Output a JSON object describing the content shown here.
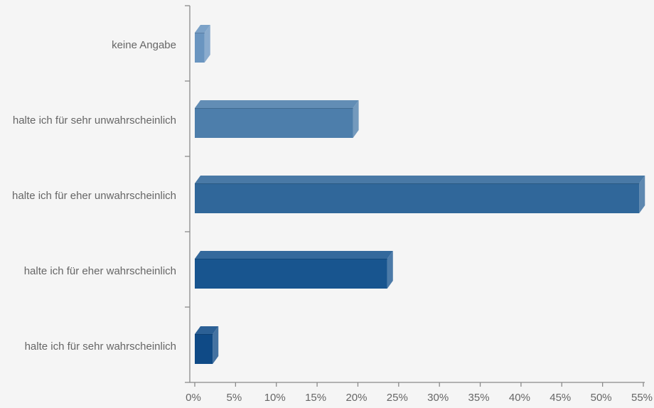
{
  "chart_data": {
    "type": "bar",
    "orientation": "horizontal",
    "style": "3d",
    "categories": [
      "keine Angabe",
      "halte ich für sehr unwahrscheinlich",
      "halte ich für eher unwahrscheinlich",
      "halte ich für eher wahrscheinlich",
      "halte ich für sehr wahrscheinlich"
    ],
    "values": [
      1.2,
      19.4,
      54.5,
      23.6,
      2.2
    ],
    "colors": [
      "#6a95c0",
      "#4d7eab",
      "#30679a",
      "#18558f",
      "#0f4a86"
    ],
    "xlim": [
      0,
      55
    ],
    "xticks": [
      0,
      5,
      10,
      15,
      20,
      25,
      30,
      35,
      40,
      45,
      50,
      55
    ],
    "xtick_labels": [
      "0%",
      "5%",
      "10%",
      "15%",
      "20%",
      "25%",
      "30%",
      "35%",
      "40%",
      "45%",
      "50%",
      "55%"
    ],
    "title": "",
    "xlabel": "",
    "ylabel": "",
    "grid": false,
    "background": "#f5f5f5",
    "axis_color": "#8a8a8a"
  }
}
